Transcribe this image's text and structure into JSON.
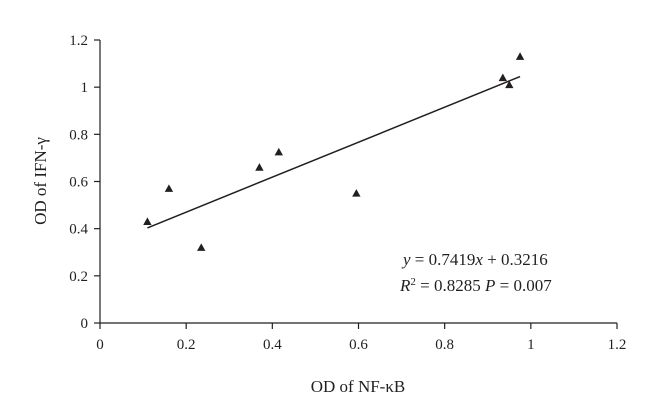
{
  "chart_data": {
    "type": "scatter",
    "xlabel": "OD of NF-κB",
    "ylabel": "OD of IFN-γ",
    "xlim": [
      0,
      1.2
    ],
    "ylim": [
      0,
      1.2
    ],
    "xticks": [
      "0",
      "0.2",
      "0.4",
      "0.6",
      "0.8",
      "1",
      "1.2"
    ],
    "yticks": [
      "0",
      "0.2",
      "0.4",
      "0.6",
      "0.8",
      "1",
      "1.2"
    ],
    "grid": false,
    "marker": "triangle",
    "points": [
      {
        "x": 0.11,
        "y": 0.43
      },
      {
        "x": 0.16,
        "y": 0.57
      },
      {
        "x": 0.235,
        "y": 0.32
      },
      {
        "x": 0.37,
        "y": 0.66
      },
      {
        "x": 0.415,
        "y": 0.725
      },
      {
        "x": 0.595,
        "y": 0.55
      },
      {
        "x": 0.935,
        "y": 1.04
      },
      {
        "x": 0.95,
        "y": 1.01
      },
      {
        "x": 0.975,
        "y": 1.13
      }
    ],
    "trendline": {
      "slope": 0.7419,
      "intercept": 0.3216,
      "x_range": [
        0.11,
        0.975
      ]
    },
    "annotations": {
      "equation": "y = 0.7419x + 0.3216",
      "r_squared": "R2 = 0.8285",
      "p_value": "P = 0.007"
    }
  }
}
